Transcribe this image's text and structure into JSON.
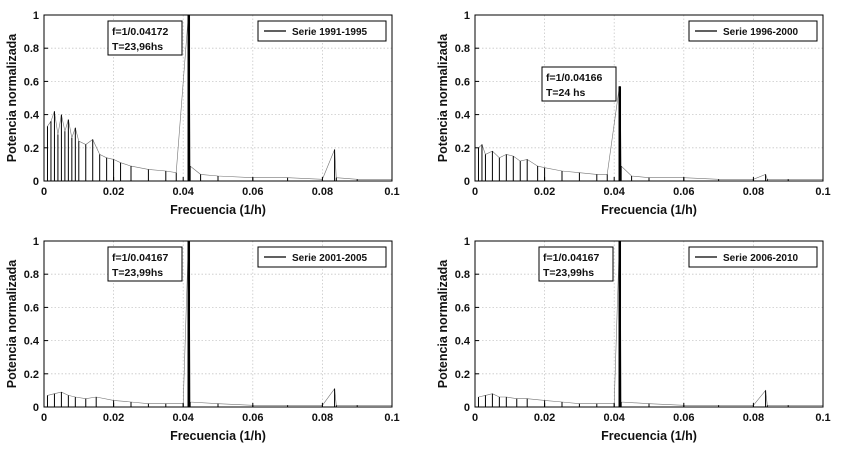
{
  "chart_data": [
    {
      "type": "line",
      "series": [
        {
          "name": "Serie 1991-1995",
          "x": [
            0.001,
            0.002,
            0.003,
            0.004,
            0.005,
            0.006,
            0.007,
            0.008,
            0.009,
            0.01,
            0.012,
            0.014,
            0.016,
            0.018,
            0.02,
            0.022,
            0.025,
            0.03,
            0.035,
            0.038,
            0.0415,
            0.0417,
            0.042,
            0.045,
            0.05,
            0.06,
            0.07,
            0.08,
            0.0835,
            0.084,
            0.09,
            0.1
          ],
          "y": [
            0.33,
            0.36,
            0.42,
            0.28,
            0.4,
            0.3,
            0.37,
            0.26,
            0.32,
            0.24,
            0.22,
            0.25,
            0.16,
            0.14,
            0.13,
            0.11,
            0.09,
            0.07,
            0.06,
            0.05,
            1.0,
            1.0,
            0.09,
            0.04,
            0.03,
            0.02,
            0.02,
            0.01,
            0.19,
            0.02,
            0.01,
            0.01
          ],
          "color": "#000000"
        }
      ],
      "xlabel": "Frecuencia (1/h)",
      "ylabel": "Potencia normalizada",
      "xlim": [
        0,
        0.1
      ],
      "ylim": [
        0,
        1
      ],
      "xticks": [
        "0",
        "0.02",
        "0.04",
        "0.06",
        "0.08",
        "0.1"
      ],
      "yticks": [
        "0",
        "0.2",
        "0.4",
        "0.6",
        "0.8",
        "1"
      ],
      "grid": true,
      "legend": "top-right",
      "annotation": [
        "f=1/0.04172",
        "T=23,96hs"
      ]
    },
    {
      "type": "line",
      "series": [
        {
          "name": "Serie 1996-2000",
          "x": [
            0.001,
            0.002,
            0.003,
            0.005,
            0.007,
            0.009,
            0.011,
            0.013,
            0.015,
            0.018,
            0.02,
            0.025,
            0.03,
            0.035,
            0.038,
            0.0415,
            0.0417,
            0.042,
            0.045,
            0.05,
            0.06,
            0.07,
            0.08,
            0.0835,
            0.084,
            0.09,
            0.1
          ],
          "y": [
            0.2,
            0.22,
            0.16,
            0.18,
            0.14,
            0.16,
            0.15,
            0.12,
            0.13,
            0.09,
            0.08,
            0.06,
            0.05,
            0.04,
            0.04,
            0.57,
            0.57,
            0.09,
            0.03,
            0.02,
            0.02,
            0.01,
            0.01,
            0.04,
            0.01,
            0.01,
            0.01
          ],
          "color": "#000000"
        }
      ],
      "xlabel": "Frecuencia (1/h)",
      "ylabel": "Potencia normalizada",
      "xlim": [
        0,
        0.1
      ],
      "ylim": [
        0,
        1
      ],
      "xticks": [
        "0",
        "0.02",
        "0.04",
        "0.06",
        "0.08",
        "0.1"
      ],
      "yticks": [
        "0",
        "0.2",
        "0.4",
        "0.6",
        "0.8",
        "1"
      ],
      "grid": true,
      "legend": "top-right",
      "annotation": [
        "f=1/0.04166",
        "T=24 hs"
      ]
    },
    {
      "type": "line",
      "series": [
        {
          "name": "Serie 2001-2005",
          "x": [
            0.001,
            0.003,
            0.005,
            0.007,
            0.009,
            0.012,
            0.015,
            0.02,
            0.025,
            0.03,
            0.035,
            0.04,
            0.0415,
            0.0417,
            0.042,
            0.05,
            0.06,
            0.07,
            0.08,
            0.0835,
            0.084,
            0.09,
            0.1
          ],
          "y": [
            0.07,
            0.08,
            0.09,
            0.07,
            0.06,
            0.05,
            0.06,
            0.04,
            0.03,
            0.02,
            0.02,
            0.02,
            1.0,
            1.0,
            0.03,
            0.02,
            0.01,
            0.01,
            0.01,
            0.11,
            0.01,
            0.01,
            0.01
          ],
          "color": "#000000"
        }
      ],
      "xlabel": "Frecuencia (1/h)",
      "ylabel": "Potencia normalizada",
      "xlim": [
        0,
        0.1
      ],
      "ylim": [
        0,
        1
      ],
      "xticks": [
        "0",
        "0.02",
        "0.04",
        "0.06",
        "0.08",
        "0.1"
      ],
      "yticks": [
        "0",
        "0.2",
        "0.4",
        "0.6",
        "0.8",
        "1"
      ],
      "grid": true,
      "legend": "top-right",
      "annotation": [
        "f=1/0.04167",
        "T=23,99hs"
      ]
    },
    {
      "type": "line",
      "series": [
        {
          "name": "Serie 2006-2010",
          "x": [
            0.001,
            0.003,
            0.005,
            0.007,
            0.009,
            0.012,
            0.015,
            0.02,
            0.025,
            0.03,
            0.035,
            0.04,
            0.0415,
            0.0417,
            0.042,
            0.05,
            0.06,
            0.07,
            0.08,
            0.0835,
            0.084,
            0.09,
            0.1
          ],
          "y": [
            0.06,
            0.07,
            0.08,
            0.06,
            0.06,
            0.05,
            0.05,
            0.04,
            0.03,
            0.02,
            0.02,
            0.02,
            1.0,
            1.0,
            0.03,
            0.02,
            0.01,
            0.01,
            0.01,
            0.1,
            0.01,
            0.01,
            0.01
          ],
          "color": "#000000"
        }
      ],
      "xlabel": "Frecuencia (1/h)",
      "ylabel": "Potencia normalizada",
      "xlim": [
        0,
        0.1
      ],
      "ylim": [
        0,
        1
      ],
      "xticks": [
        "0",
        "0.02",
        "0.04",
        "0.06",
        "0.08",
        "0.1"
      ],
      "yticks": [
        "0",
        "0.2",
        "0.4",
        "0.6",
        "0.8",
        "1"
      ],
      "grid": true,
      "legend": "top-right",
      "annotation": [
        "f=1/0.04167",
        "T=23,99hs"
      ]
    }
  ]
}
